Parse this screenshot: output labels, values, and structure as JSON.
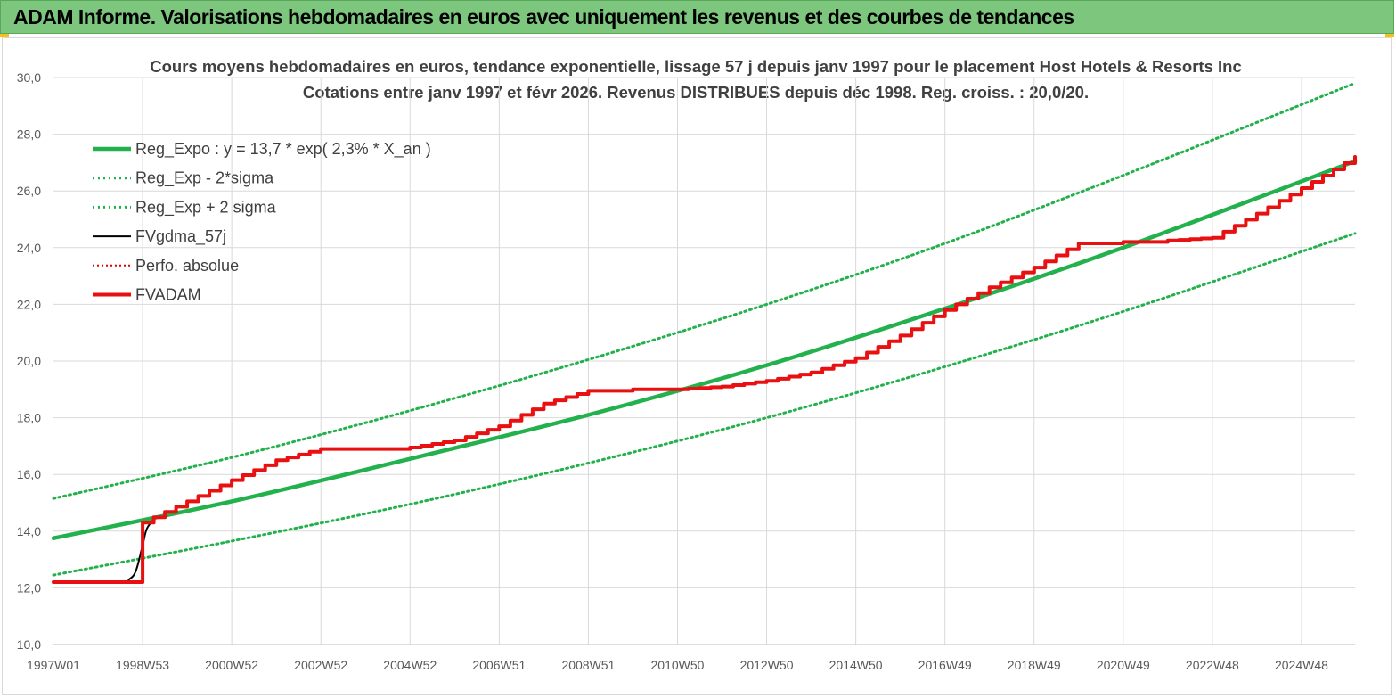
{
  "header": {
    "title": "ADAM Informe. Valorisations hebdomadaires en euros avec uniquement les revenus et des courbes de tendances"
  },
  "colors": {
    "banner": "#7dc67d",
    "reg_expo": "#22b14c",
    "sigma": "#22b14c",
    "fvgdma": "#000000",
    "perfo": "#e00000",
    "fvadam": "#e81010",
    "grid": "#d9d9d9"
  },
  "chart_data": {
    "type": "line",
    "title": "Cours moyens hebdomadaires en euros, tendance exponentielle, lissage 57 j depuis janv 1997 pour le placement Host Hotels & Resorts Inc",
    "subtitle": "Cotations entre janv 1997 et févr 2026. Revenus DISTRIBUES depuis déc 1998. Reg. croiss. : 20,0/20.",
    "ylim": [
      10,
      30
    ],
    "y_ticks": [
      "10,0",
      "12,0",
      "14,0",
      "16,0",
      "18,0",
      "20,0",
      "22,0",
      "24,0",
      "26,0",
      "28,0",
      "30,0"
    ],
    "x_range_years": [
      1997.0,
      2026.2
    ],
    "x_ticks": [
      {
        "label": "1997W01",
        "year": 1997.0
      },
      {
        "label": "1998W53",
        "year": 1999.0
      },
      {
        "label": "2000W52",
        "year": 2001.0
      },
      {
        "label": "2002W52",
        "year": 2003.0
      },
      {
        "label": "2004W52",
        "year": 2005.0
      },
      {
        "label": "2006W51",
        "year": 2007.0
      },
      {
        "label": "2008W51",
        "year": 2009.0
      },
      {
        "label": "2010W50",
        "year": 2011.0
      },
      {
        "label": "2012W50",
        "year": 2013.0
      },
      {
        "label": "2014W50",
        "year": 2015.0
      },
      {
        "label": "2016W49",
        "year": 2017.0
      },
      {
        "label": "2018W49",
        "year": 2019.0
      },
      {
        "label": "2020W49",
        "year": 2021.0
      },
      {
        "label": "2022W48",
        "year": 2023.0
      },
      {
        "label": "2024W48",
        "year": 2025.0
      }
    ],
    "legend_position": "top-left",
    "grid": true,
    "series": [
      {
        "name": "Reg_Expo : y = 13,7 * exp( 2,3% *  X_an )",
        "style": "thick",
        "x": [
          1997.0,
          2001.0,
          2005.0,
          2009.0,
          2013.0,
          2017.0,
          2021.0,
          2026.2
        ],
        "y": [
          13.75,
          15.05,
          16.55,
          18.1,
          19.85,
          21.85,
          24.0,
          27.05
        ]
      },
      {
        "name": "Reg_Exp - 2*sigma",
        "style": "dotted",
        "x": [
          1997.0,
          2001.0,
          2005.0,
          2009.0,
          2013.0,
          2017.0,
          2021.0,
          2026.2
        ],
        "y": [
          12.45,
          13.65,
          14.95,
          16.4,
          18.0,
          19.8,
          21.75,
          24.5
        ]
      },
      {
        "name": "Reg_Exp + 2 sigma",
        "style": "dotted",
        "x": [
          1997.0,
          2001.0,
          2005.0,
          2009.0,
          2013.0,
          2017.0,
          2021.0,
          2026.2
        ],
        "y": [
          15.15,
          16.6,
          18.25,
          20.05,
          22.0,
          24.15,
          26.55,
          29.8
        ]
      },
      {
        "name": "FVgdma_57j",
        "style": "thin",
        "x": [
          1997.0,
          1998.5,
          1998.7,
          1998.85,
          1999.0,
          1999.1,
          1999.3
        ],
        "y": [
          12.2,
          12.2,
          12.3,
          12.6,
          13.5,
          14.1,
          14.5
        ]
      },
      {
        "name": "Perfo. absolue",
        "style": "dotted-red",
        "x": [],
        "y": []
      },
      {
        "name": "FVADAM",
        "style": "step",
        "x": [
          1997.0,
          1999.0,
          1999.0,
          2000.0,
          2001.0,
          2002.0,
          2003.0,
          2005.0,
          2006.0,
          2007.0,
          2008.0,
          2009.0,
          2010.0,
          2011.0,
          2012.0,
          2013.0,
          2014.0,
          2015.0,
          2016.0,
          2017.0,
          2018.0,
          2019.0,
          2020.0,
          2021.0,
          2022.0,
          2023.0,
          2024.0,
          2025.0,
          2026.2
        ],
        "y": [
          12.2,
          12.2,
          14.3,
          15.05,
          15.8,
          16.5,
          16.9,
          16.95,
          17.2,
          17.7,
          18.5,
          18.95,
          19.0,
          19.0,
          19.1,
          19.3,
          19.6,
          20.1,
          20.9,
          21.8,
          22.6,
          23.3,
          24.15,
          24.2,
          24.25,
          24.35,
          25.2,
          26.1,
          27.2
        ]
      }
    ]
  }
}
